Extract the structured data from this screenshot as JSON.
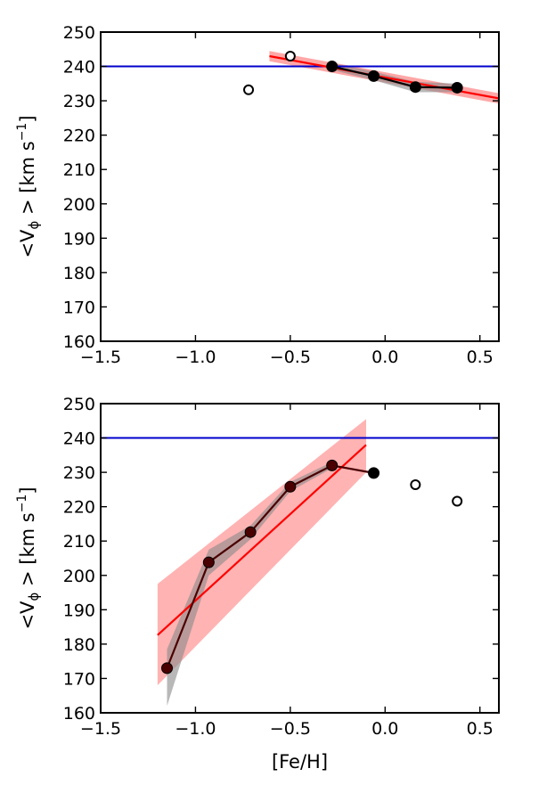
{
  "chart_data": [
    {
      "type": "line",
      "name": "top-panel",
      "xlim": [
        -1.5,
        0.6
      ],
      "ylim": [
        160,
        250
      ],
      "xticks": [
        -1.5,
        -1.0,
        -0.5,
        0.0,
        0.5
      ],
      "xtick_labels": [
        "−1.5",
        "−1.0",
        "−0.5",
        "0.0",
        "0.5"
      ],
      "yticks": [
        160,
        170,
        180,
        190,
        200,
        210,
        220,
        230,
        240,
        250
      ],
      "ytick_labels": [
        "160",
        "170",
        "180",
        "190",
        "200",
        "210",
        "220",
        "230",
        "240",
        "250"
      ],
      "xlabel": "",
      "ylabel_main": "<V",
      "ylabel_sub": "ϕ",
      "ylabel_rest": " > [km s",
      "ylabel_sup": "−1",
      "ylabel_close": "]",
      "hline": 240,
      "hline_color": "#0000cc",
      "binned": {
        "x": [
          -0.28,
          -0.06,
          0.16,
          0.38
        ],
        "y": [
          240.0,
          237.2,
          234.0,
          233.8
        ],
        "band_lower": [
          239.0,
          236.0,
          232.5,
          232.5
        ],
        "band_upper": [
          241.0,
          238.5,
          235.5,
          235.0
        ]
      },
      "open_points": {
        "x": [
          -0.72,
          -0.5
        ],
        "y": [
          233.2,
          243.0
        ]
      },
      "fit_line": {
        "x": [
          -0.61,
          0.6
        ],
        "y": [
          243.0,
          230.7
        ],
        "band": 1.5
      },
      "colors": {
        "points": "#000000",
        "band_grey": "#888888",
        "fit": "#ff0000",
        "fit_band": "#ff8a8a"
      }
    },
    {
      "type": "line",
      "name": "bottom-panel",
      "xlim": [
        -1.5,
        0.6
      ],
      "ylim": [
        160,
        250
      ],
      "xticks": [
        -1.5,
        -1.0,
        -0.5,
        0.0,
        0.5
      ],
      "xtick_labels": [
        "−1.5",
        "−1.0",
        "−0.5",
        "0.0",
        "0.5"
      ],
      "yticks": [
        160,
        170,
        180,
        190,
        200,
        210,
        220,
        230,
        240,
        250
      ],
      "ytick_labels": [
        "160",
        "170",
        "180",
        "190",
        "200",
        "210",
        "220",
        "230",
        "240",
        "250"
      ],
      "xlabel": "[Fe/H]",
      "ylabel_main": "<V",
      "ylabel_sub": "ϕ",
      "ylabel_rest": " > [km s",
      "ylabel_sup": "−1",
      "ylabel_close": "]",
      "hline": 240,
      "hline_color": "#0000cc",
      "binned": {
        "x": [
          -1.15,
          -0.93,
          -0.71,
          -0.5,
          -0.28
        ],
        "y": [
          173.0,
          203.8,
          212.6,
          225.8,
          232.0
        ],
        "band_lower": [
          162.0,
          200.0,
          210.5,
          224.5,
          231.2
        ],
        "band_upper": [
          178.5,
          207.5,
          214.5,
          227.2,
          233.0
        ]
      },
      "end_point": {
        "x": -0.06,
        "y": 229.8
      },
      "open_points": {
        "x": [
          0.16,
          0.38
        ],
        "y": [
          226.4,
          221.6
        ]
      },
      "fit_line": {
        "x": [
          -1.2,
          -0.1
        ],
        "y": [
          182.6,
          238.0
        ]
      },
      "fit_band": {
        "x": [
          -1.2,
          -0.1
        ],
        "lower": [
          168.0,
          230.0
        ],
        "upper": [
          197.5,
          245.5
        ]
      },
      "colors": {
        "points": "#4a0000",
        "band_grey": "#888888",
        "fit": "#ff0000",
        "fit_band": "#ff9a9a"
      }
    }
  ]
}
